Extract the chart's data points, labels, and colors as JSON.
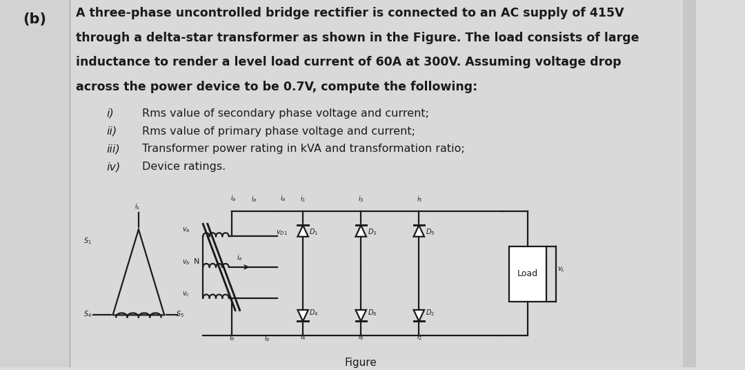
{
  "bg_color": "#dcdcdc",
  "left_col_color": "#d5d5d5",
  "right_col_color": "#d8d8d8",
  "label_b": "(b)",
  "main_text_lines": [
    "A three-phase uncontrolled bridge rectifier is connected to an AC supply of 415V",
    "through a delta-star transformer as shown in the Figure. The load consists of large",
    "inductance to render a level load current of 60A at 300V. Assuming voltage drop",
    "across the power device to be 0.7V, compute the following:"
  ],
  "sub_items": [
    [
      "i)",
      "Rms value of secondary phase voltage and current;"
    ],
    [
      "ii)",
      "Rms value of primary phase voltage and current;"
    ],
    [
      "iii)",
      "Transformer power rating in kVA and transformation ratio;"
    ],
    [
      "iv)",
      "Device ratings."
    ]
  ],
  "figure_label": "Figure",
  "text_color": "#1a1a1a",
  "main_font_size": 12.5,
  "sub_font_size": 11.5,
  "label_font_size": 15
}
